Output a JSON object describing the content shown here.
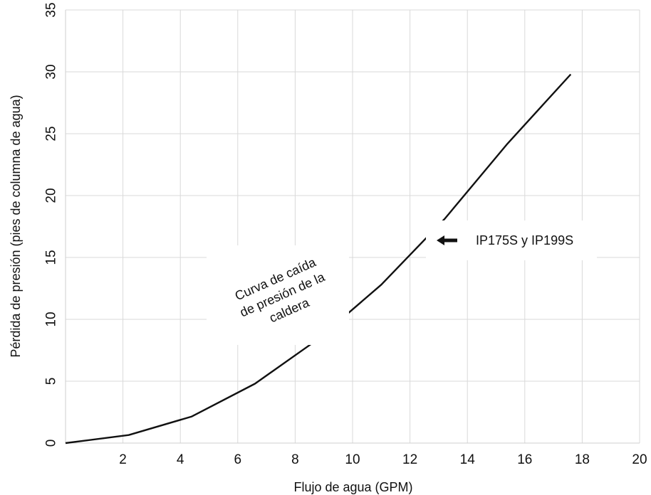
{
  "chart_data": {
    "type": "line",
    "title": "",
    "xlabel": "Flujo de agua (GPM)",
    "ylabel": "Pérdida de presión (pies de columna de agua)",
    "xlim": [
      0,
      20
    ],
    "ylim": [
      0,
      35
    ],
    "x_ticks": [
      2,
      4,
      6,
      8,
      10,
      12,
      14,
      16,
      18,
      20
    ],
    "y_ticks": [
      0,
      5,
      10,
      15,
      20,
      25,
      30,
      35
    ],
    "grid": true,
    "series": [
      {
        "x": [
          0,
          2.2,
          4.4,
          6.6,
          8.8,
          11,
          13.2,
          15.4,
          17.6
        ],
        "y": [
          0,
          0.65,
          2.15,
          4.8,
          8.4,
          12.8,
          18.1,
          24.2,
          29.8
        ]
      }
    ],
    "annotations": [
      {
        "text_lines": [
          "Curva de caída",
          "de presión de la",
          "caldera"
        ],
        "rotation": -24
      },
      {
        "text": "IP175S y IP199S",
        "arrow": "left"
      }
    ]
  }
}
